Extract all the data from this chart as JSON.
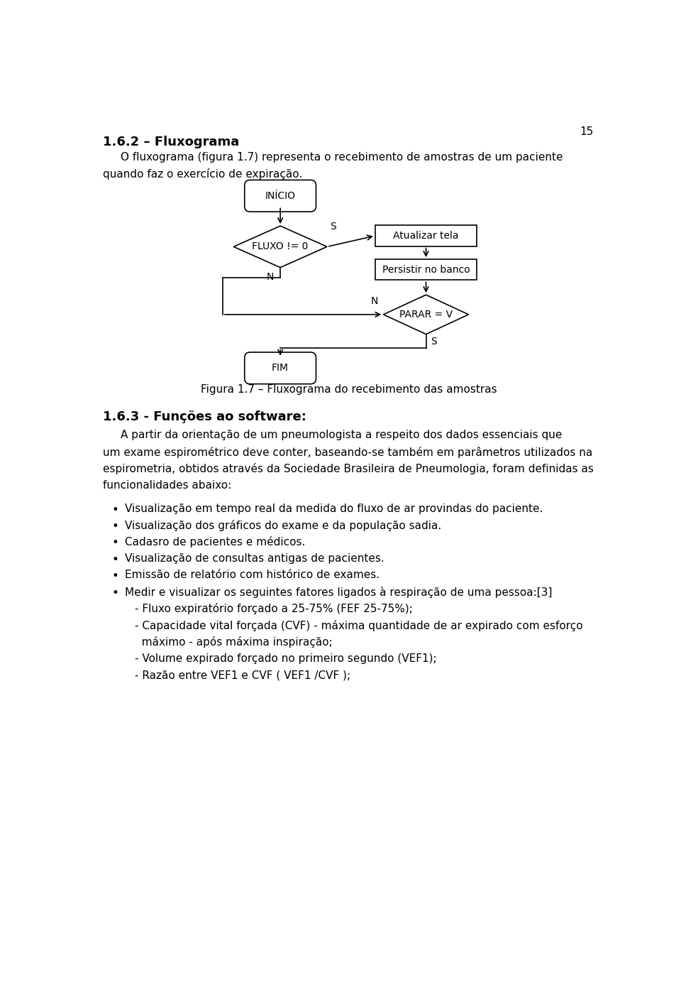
{
  "page_number": "15",
  "section_title": "1.6.2 – Fluxograma",
  "intro_line1": "O fluxograma (figura 1.7) representa o recebimento de amostras de um paciente",
  "intro_line2": "quando faz o exercício de expiração.",
  "figure_caption": "Figura 1.7 – Fluxograma do recebimento das amostras",
  "section2_title": "1.6.3 - Funções ao software:",
  "body_line1": "A partir da orientação de um pneumologista a respeito dos dados essenciais que",
  "body_line2": "um exame espirométrico deve conter, baseando-se também em parâmetros utilizados na",
  "body_line3": "espirometria, obtidos através da Sociedade Brasileira de Pneumologia, foram definidas as",
  "body_line4": "funcionalidades abaixo:",
  "bullet1": "Visualização em tempo real da medida do fluxo de ar provindas do paciente.",
  "bullet2": "Visualização dos gráficos do exame e da população sadia.",
  "bullet3": "Cadasro de pacientes e médicos.",
  "bullet4": "Visualização de consultas antigas de pacientes.",
  "bullet5": "Emissão de relatório com histórico de exames.",
  "bullet6": "Medir e visualizar os seguintes fatores ligados à respiração de uma pessoa:[3]",
  "sub1": "- Fluxo expiratório forçado a 25-75% (FEF 25-75%);",
  "sub2a": "- Capacidade vital forçada (CVF) - máxima quantidade de ar expirado com esforço",
  "sub2b": "  máximo - após máxima inspiração;",
  "sub3": "- Volume expirado forçado no primeiro segundo (VEF1);",
  "sub4": "- Razão entre VEF1 e CVF ( VEF1 /CVF );",
  "bg_color": "#ffffff",
  "text_color": "#000000",
  "fc_node_inicio": "INÍCIO",
  "fc_node_fluxo": "FLUXO != 0",
  "fc_node_atualizar": "Atualizar tela",
  "fc_node_persistir": "Persistir no banco",
  "fc_node_parar": "PARAR = V",
  "fc_node_fim": "FIM",
  "fc_label_s1": "S",
  "fc_label_n1": "N",
  "fc_label_n2": "N",
  "fc_label_s2": "S"
}
